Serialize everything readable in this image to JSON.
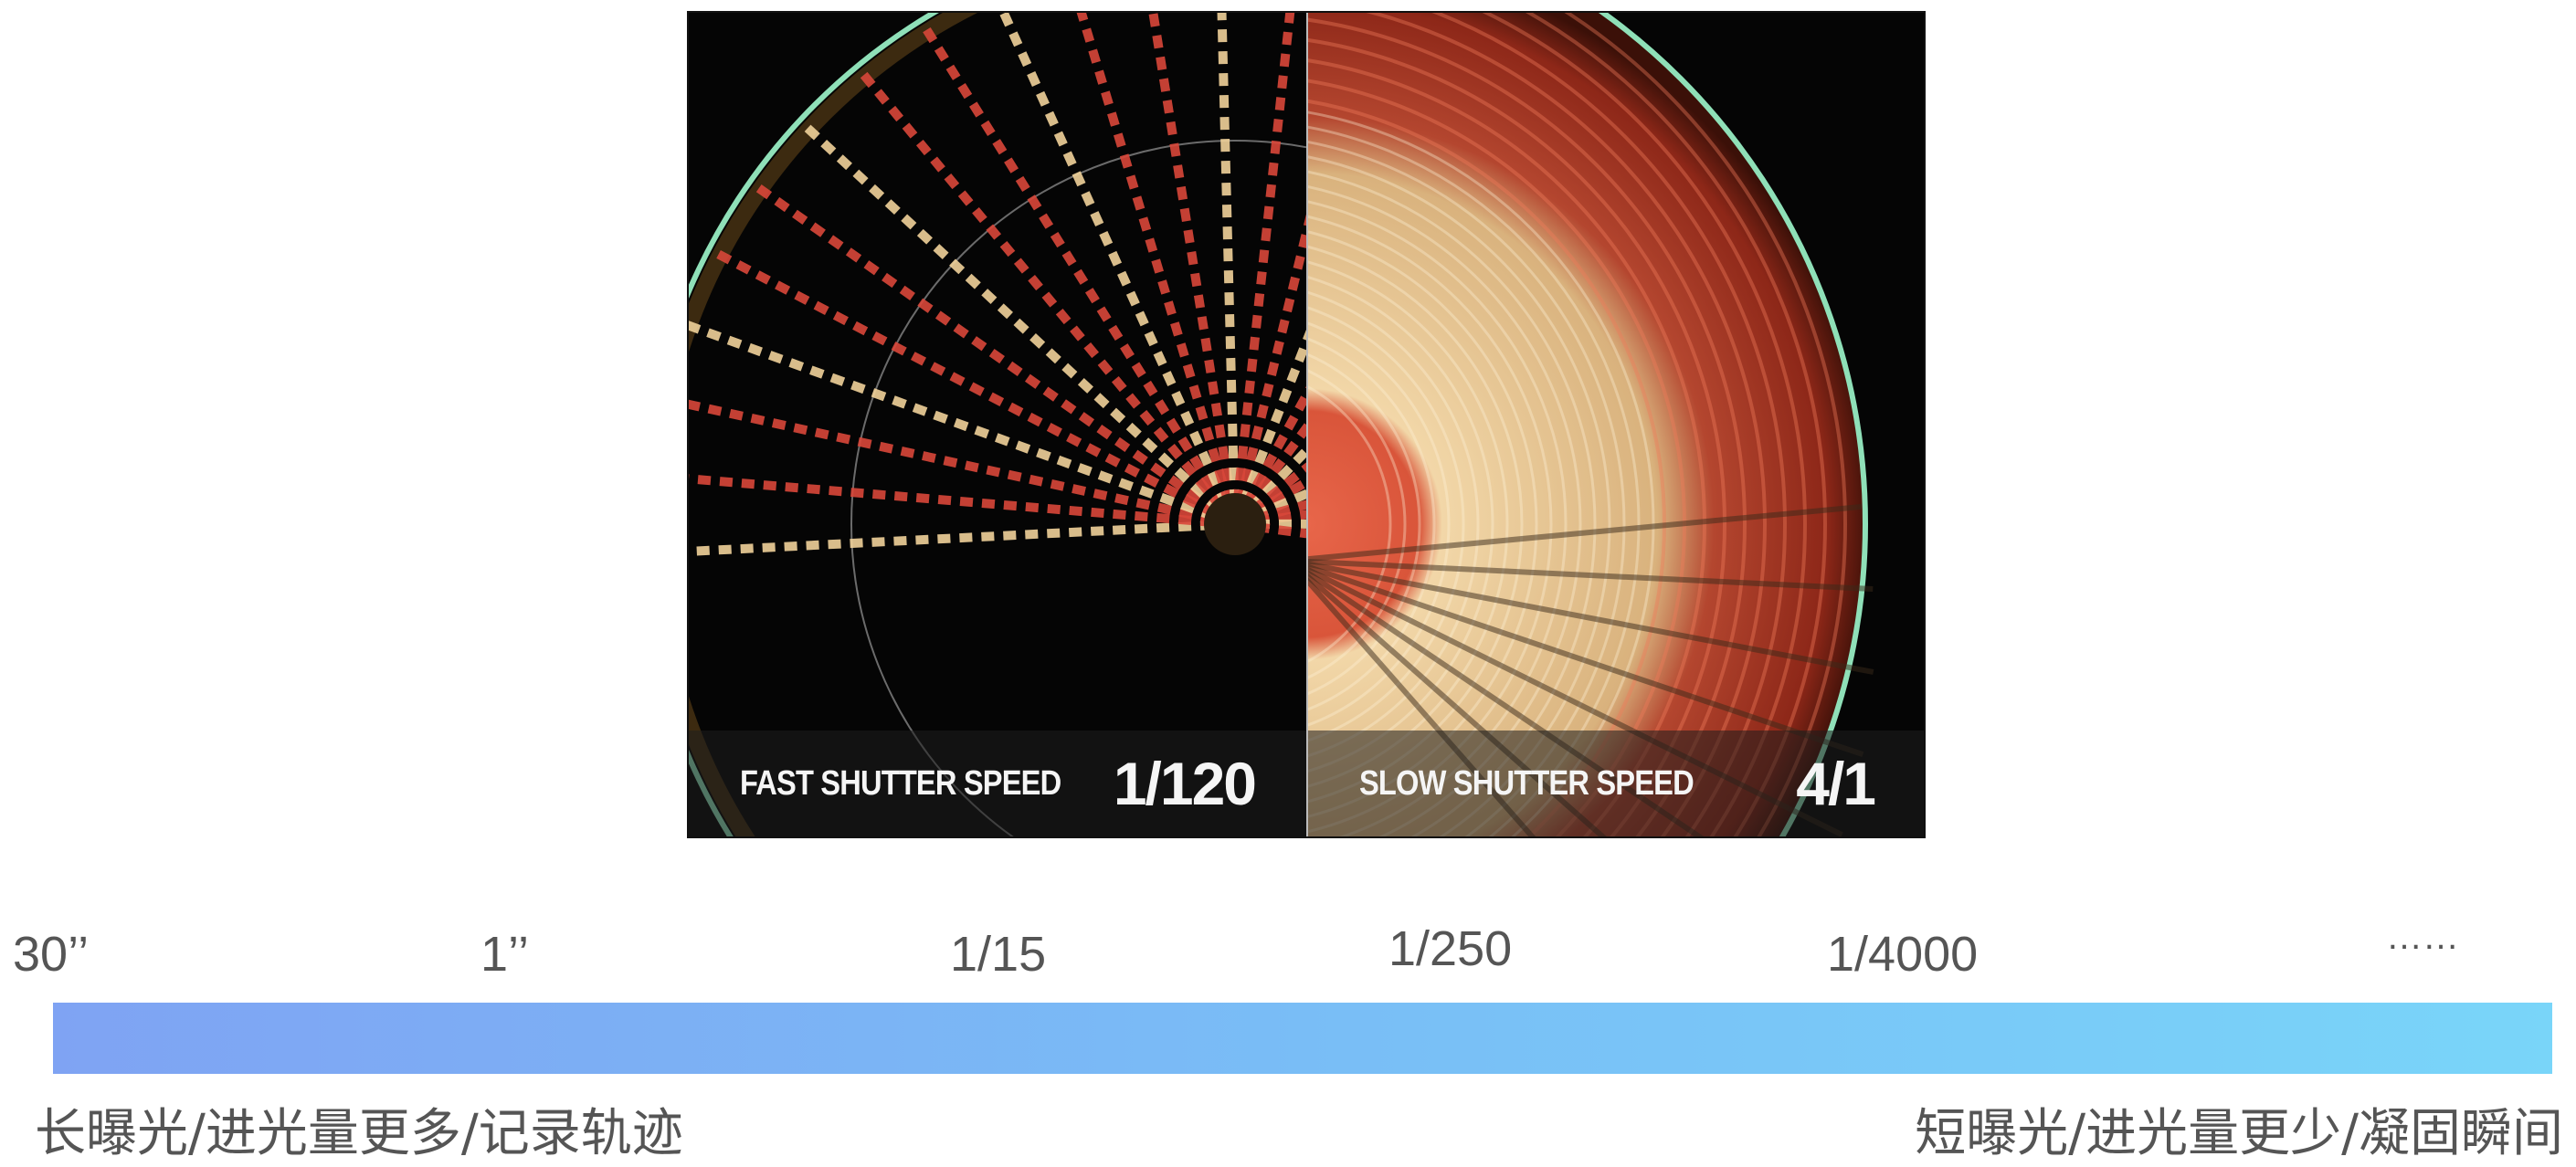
{
  "photo": {
    "left_label": "FAST SHUTTER SPEED",
    "left_value": "1/120",
    "right_label": "SLOW SHUTTER SPEED",
    "right_value": "4/1"
  },
  "scale": {
    "ticks": [
      "30’’",
      "1’’",
      "1/15",
      "1/250",
      "1/4000",
      "……"
    ],
    "left_caption": "长曝光/进光量更多/记录轨迹",
    "right_caption": "短曝光/进光量更少/凝固瞬间",
    "gradient_colors": [
      "#7fa3f3",
      "#79bdf6",
      "#79d5f9"
    ]
  }
}
